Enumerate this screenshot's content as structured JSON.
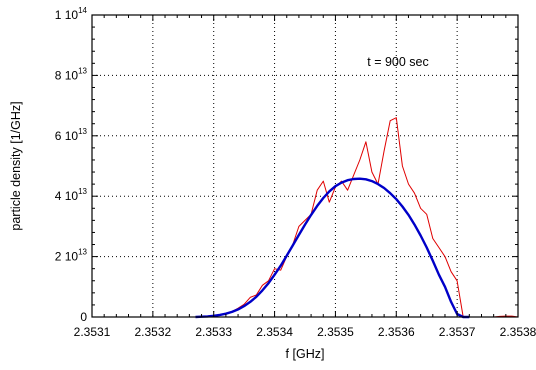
{
  "chart_data": {
    "type": "line",
    "title": "",
    "xlabel": "f [GHz]",
    "ylabel": "particle density [1/GHz]",
    "xlim": [
      2.3531,
      2.3538
    ],
    "ylim": [
      0,
      100000000000000.0
    ],
    "grid": true,
    "x_ticks": [
      2.3531,
      2.3532,
      2.3533,
      2.3534,
      2.3535,
      2.3536,
      2.3537,
      2.3538
    ],
    "x_tick_labels": [
      "2.3531",
      "2.3532",
      "2.3533",
      "2.3534",
      "2.3535",
      "2.3536",
      "2.3537",
      "2.3538"
    ],
    "y_ticks": [
      0,
      20000000000000.0,
      40000000000000.0,
      60000000000000.0,
      80000000000000.0,
      100000000000000.0
    ],
    "y_tick_labels": [
      {
        "mantissa": "0",
        "exponent": ""
      },
      {
        "mantissa": "2 10",
        "exponent": "13"
      },
      {
        "mantissa": "4 10",
        "exponent": "13"
      },
      {
        "mantissa": "6 10",
        "exponent": "13"
      },
      {
        "mantissa": "8 10",
        "exponent": "13"
      },
      {
        "mantissa": "1 10",
        "exponent": "14"
      }
    ],
    "annotations": [
      {
        "text": "t = 900 sec"
      }
    ],
    "series": [
      {
        "style": "measured",
        "color": "#e00000",
        "x": [
          2.35327,
          2.35328,
          2.35329,
          2.3533,
          2.35331,
          2.35332,
          2.35333,
          2.35334,
          2.35335,
          2.35336,
          2.35337,
          2.35338,
          2.35339,
          2.3534,
          2.35341,
          2.35342,
          2.35343,
          2.35344,
          2.35345,
          2.35346,
          2.35347,
          2.35348,
          2.35349,
          2.3535,
          2.35351,
          2.35352,
          2.35353,
          2.35354,
          2.35355,
          2.35356,
          2.35357,
          2.35358,
          2.35359,
          2.3536,
          2.35361,
          2.35362,
          2.35363,
          2.35364,
          2.35365,
          2.35366,
          2.35367,
          2.35368,
          2.35369,
          2.3537,
          2.35371,
          2.35372,
          2.35373,
          2.35374,
          2.35375,
          2.35376,
          2.35377,
          2.35378,
          2.35379,
          2.3538
        ],
        "y": [
          0,
          0,
          100000000000.0,
          300000000000.0,
          600000000000.0,
          1100000000000.0,
          1800000000000.0,
          2900000000000.0,
          4200000000000.0,
          6500000000000.0,
          7300000000000.0,
          10500000000000.0,
          12000000000000.0,
          16000000000000.0,
          15500000000000.0,
          20000000000000.0,
          24000000000000.0,
          30000000000000.0,
          32000000000000.0,
          34000000000000.0,
          42000000000000.0,
          45000000000000.0,
          38000000000000.0,
          43000000000000.0,
          45000000000000.0,
          42000000000000.0,
          47000000000000.0,
          52000000000000.0,
          58000000000000.0,
          48000000000000.0,
          44000000000000.0,
          55000000000000.0,
          65000000000000.0,
          66000000000000.0,
          50000000000000.0,
          44000000000000.0,
          41000000000000.0,
          36000000000000.0,
          34000000000000.0,
          26000000000000.0,
          23000000000000.0,
          20000000000000.0,
          15000000000000.0,
          12000000000000.0,
          0,
          0,
          0,
          0,
          0,
          0,
          200000000000.0,
          300000000000.0,
          300000000000.0,
          0
        ]
      },
      {
        "style": "fit",
        "color": "#0000c8",
        "x": [
          2.35327,
          2.35328,
          2.35329,
          2.3533,
          2.35331,
          2.35332,
          2.35333,
          2.35334,
          2.35335,
          2.35336,
          2.35337,
          2.35338,
          2.35339,
          2.3534,
          2.35341,
          2.35342,
          2.35343,
          2.35344,
          2.35345,
          2.35346,
          2.35347,
          2.35348,
          2.35349,
          2.3535,
          2.35351,
          2.35352,
          2.35353,
          2.35354,
          2.35355,
          2.35356,
          2.35357,
          2.35358,
          2.35359,
          2.3536,
          2.35361,
          2.35362,
          2.35363,
          2.35364,
          2.35365,
          2.35366,
          2.35367,
          2.35368,
          2.35369,
          2.3537,
          2.35371,
          2.35372
        ],
        "y": [
          0,
          100000000000.0,
          200000000000.0,
          400000000000.0,
          700000000000.0,
          1100000000000.0,
          1700000000000.0,
          2500000000000.0,
          3600000000000.0,
          5000000000000.0,
          6700000000000.0,
          8800000000000.0,
          11200000000000.0,
          14000000000000.0,
          17000000000000.0,
          20300000000000.0,
          23700000000000.0,
          27200000000000.0,
          30600000000000.0,
          33800000000000.0,
          36800000000000.0,
          39400000000000.0,
          41600000000000.0,
          43300000000000.0,
          44500000000000.0,
          45300000000000.0,
          45700000000000.0,
          45800000000000.0,
          45600000000000.0,
          45000000000000.0,
          44000000000000.0,
          42700000000000.0,
          41000000000000.0,
          39000000000000.0,
          36600000000000.0,
          33800000000000.0,
          30600000000000.0,
          27000000000000.0,
          23000000000000.0,
          18600000000000.0,
          14000000000000.0,
          10000000000000.0,
          5000000000000.0,
          1000000000000.0,
          0,
          0
        ]
      }
    ]
  }
}
